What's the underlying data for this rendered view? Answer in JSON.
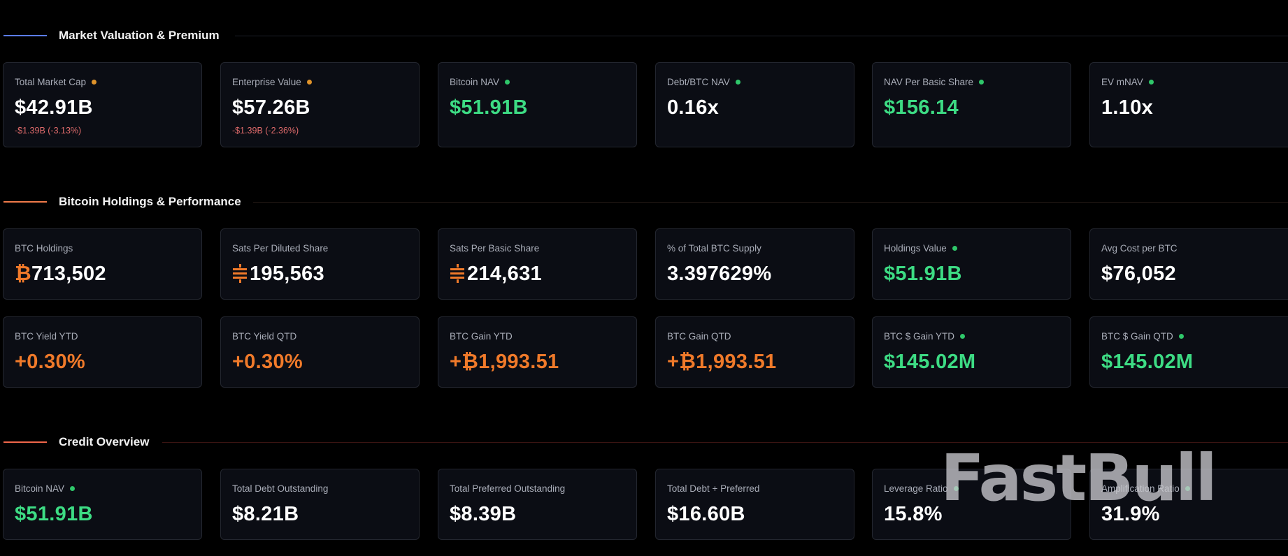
{
  "colors": {
    "white": "#ffffff",
    "green": "#3ddc84",
    "orange": "#f07a2a",
    "red": "#e06b6b",
    "dot_orange": "#e0932a",
    "dot_green": "#2fc76a",
    "section1_accent": "#5b7cf2",
    "section2_accent": "#f07a4a",
    "section3_accent": "#f0664a"
  },
  "sections": [
    {
      "title": "Market Valuation & Premium"
    },
    {
      "title": "Bitcoin Holdings & Performance"
    },
    {
      "title": "Credit Overview"
    }
  ],
  "market": [
    {
      "label": "Total Market Cap",
      "value": "$42.91B",
      "sub": "-$1.39B (-3.13%)",
      "dot": "orange",
      "color": "white"
    },
    {
      "label": "Enterprise Value",
      "value": "$57.26B",
      "sub": "-$1.39B (-2.36%)",
      "dot": "orange",
      "color": "white"
    },
    {
      "label": "Bitcoin NAV",
      "value": "$51.91B",
      "dot": "green",
      "color": "green"
    },
    {
      "label": "Debt/BTC NAV",
      "value": "0.16x",
      "dot": "green",
      "color": "white"
    },
    {
      "label": "NAV Per Basic Share",
      "value": "$156.14",
      "dot": "green",
      "color": "green"
    },
    {
      "label": "EV mNAV",
      "value": "1.10x",
      "dot": "green",
      "color": "white"
    }
  ],
  "holdings_row1": [
    {
      "label": "BTC Holdings",
      "prefix_icon": "bitcoin-icon",
      "prefix": "₿",
      "value": "713,502",
      "color": "white"
    },
    {
      "label": "Sats Per Diluted Share",
      "prefix_icon": "sats-icon",
      "value": "195,563",
      "color": "white"
    },
    {
      "label": "Sats Per Basic Share",
      "prefix_icon": "sats-icon",
      "value": "214,631",
      "color": "white"
    },
    {
      "label": "% of Total BTC Supply",
      "value": "3.397629%",
      "color": "white"
    },
    {
      "label": "Holdings Value",
      "value": "$51.91B",
      "dot": "green",
      "color": "green"
    },
    {
      "label": "Avg Cost per BTC",
      "value": "$76,052",
      "color": "white"
    }
  ],
  "holdings_row2": [
    {
      "label": "BTC Yield YTD",
      "value": "+0.30%",
      "color": "orange"
    },
    {
      "label": "BTC Yield QTD",
      "value": "+0.30%",
      "color": "orange"
    },
    {
      "label": "BTC Gain YTD",
      "value": "+₿1,993.51",
      "color": "orange"
    },
    {
      "label": "BTC Gain QTD",
      "value": "+₿1,993.51",
      "color": "orange"
    },
    {
      "label": "BTC $ Gain YTD",
      "value": "$145.02M",
      "dot": "green",
      "color": "green"
    },
    {
      "label": "BTC $ Gain QTD",
      "value": "$145.02M",
      "dot": "green",
      "color": "green"
    }
  ],
  "credit": [
    {
      "label": "Bitcoin NAV",
      "value": "$51.91B",
      "dot": "green",
      "color": "green"
    },
    {
      "label": "Total Debt Outstanding",
      "value": "$8.21B",
      "color": "white"
    },
    {
      "label": "Total Preferred Outstanding",
      "value": "$8.39B",
      "color": "white"
    },
    {
      "label": "Total Debt + Preferred",
      "value": "$16.60B",
      "color": "white"
    },
    {
      "label": "Leverage Ratio",
      "value": "15.8%",
      "dot": "green",
      "color": "white"
    },
    {
      "label": "Amplification Ratio",
      "value": "31.9%",
      "dot": "green",
      "color": "white"
    }
  ],
  "watermark": "FastBull"
}
